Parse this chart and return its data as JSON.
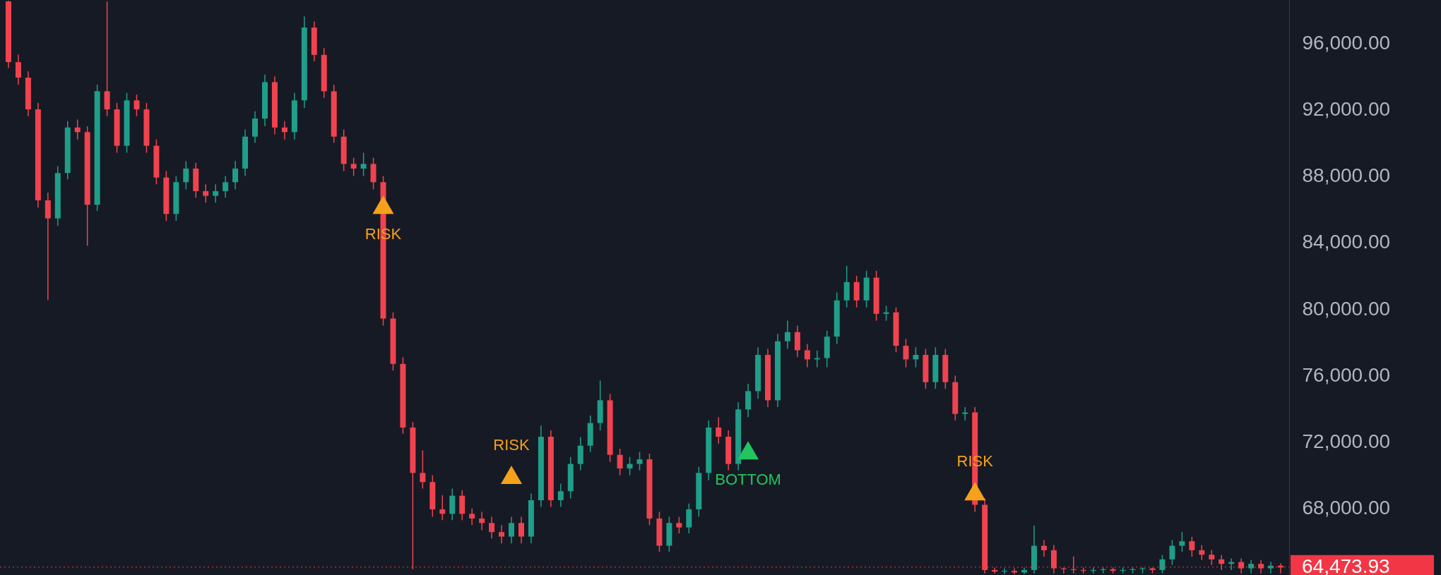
{
  "chart_data": {
    "type": "candlestick",
    "categories": [
      null,
      null,
      null,
      null,
      null,
      null,
      null,
      null,
      null,
      null,
      null,
      null,
      null,
      null,
      null,
      null,
      null,
      null,
      null,
      null,
      null,
      null,
      null,
      null,
      null,
      null,
      null,
      null,
      null,
      null,
      null,
      null,
      null,
      null,
      null,
      null,
      null,
      null,
      null,
      null,
      null,
      null,
      null,
      null,
      null,
      null,
      null,
      null,
      null,
      null,
      null,
      null,
      null,
      null,
      null,
      null,
      null,
      null,
      null,
      null,
      null,
      null,
      null,
      null,
      null,
      null,
      null,
      null,
      null,
      null,
      null,
      null,
      null,
      null,
      null,
      null,
      null,
      null,
      null,
      null,
      null,
      null,
      null,
      null,
      null,
      null,
      null,
      null,
      null,
      null,
      null,
      null,
      null,
      null,
      null,
      null,
      null,
      null,
      null,
      null,
      null,
      null,
      null,
      null,
      null,
      null,
      null,
      null,
      null,
      null,
      null,
      null,
      null,
      null,
      null,
      null,
      null,
      null,
      null,
      null,
      null,
      null,
      null,
      null,
      null,
      null,
      null,
      null,
      null,
      null
    ],
    "ohlc": [
      [
        98500,
        98550,
        94500,
        94850
      ],
      [
        94850,
        95300,
        93500,
        93920
      ],
      [
        93920,
        94300,
        91600,
        92010
      ],
      [
        92010,
        92400,
        86100,
        86540
      ],
      [
        86540,
        87000,
        80530,
        85450
      ],
      [
        85450,
        88600,
        85000,
        88180
      ],
      [
        88180,
        91300,
        87800,
        90920
      ],
      [
        90920,
        91400,
        90200,
        90640
      ],
      [
        90640,
        91000,
        83810,
        86270
      ],
      [
        86270,
        93500,
        85900,
        93100
      ],
      [
        93100,
        98500,
        91600,
        92010
      ],
      [
        92010,
        92400,
        89400,
        89820
      ],
      [
        89820,
        93000,
        89400,
        92550
      ],
      [
        92550,
        92900,
        91600,
        92010
      ],
      [
        92010,
        92400,
        89400,
        89820
      ],
      [
        89820,
        90200,
        87500,
        87910
      ],
      [
        87910,
        88300,
        85300,
        85720
      ],
      [
        85720,
        88000,
        85300,
        87630
      ],
      [
        87630,
        88900,
        87200,
        88450
      ],
      [
        88450,
        88800,
        86700,
        87090
      ],
      [
        87090,
        87500,
        86400,
        86810
      ],
      [
        86810,
        87500,
        86400,
        87090
      ],
      [
        87090,
        88000,
        86700,
        87630
      ],
      [
        87630,
        88900,
        87200,
        88450
      ],
      [
        88450,
        90800,
        88000,
        90370
      ],
      [
        90370,
        91900,
        90000,
        91460
      ],
      [
        91460,
        94100,
        91000,
        93650
      ],
      [
        93650,
        94000,
        90500,
        90920
      ],
      [
        90920,
        91300,
        90200,
        90640
      ],
      [
        90640,
        93000,
        90200,
        92550
      ],
      [
        92550,
        97600,
        92100,
        96930
      ],
      [
        96930,
        97300,
        94900,
        95290
      ],
      [
        95290,
        95700,
        92700,
        93100
      ],
      [
        93100,
        93500,
        90000,
        90370
      ],
      [
        90370,
        90800,
        88300,
        88730
      ],
      [
        88730,
        89100,
        88000,
        88450
      ],
      [
        88450,
        89400,
        88000,
        88730
      ],
      [
        88730,
        89100,
        87200,
        87630
      ],
      [
        87630,
        88000,
        79000,
        79430
      ],
      [
        79430,
        79800,
        76300,
        76700
      ],
      [
        76700,
        77100,
        72500,
        72870
      ],
      [
        72870,
        73200,
        64340,
        70140
      ],
      [
        70140,
        71500,
        69200,
        69590
      ],
      [
        69590,
        70000,
        67500,
        67950
      ],
      [
        67950,
        68800,
        67300,
        67680
      ],
      [
        67680,
        69200,
        67300,
        68770
      ],
      [
        68770,
        69100,
        67300,
        67680
      ],
      [
        67680,
        68000,
        67000,
        67400
      ],
      [
        67400,
        67800,
        66700,
        67130
      ],
      [
        67130,
        67500,
        66200,
        66580
      ],
      [
        66580,
        67000,
        65900,
        66310
      ],
      [
        66310,
        67500,
        65900,
        67130
      ],
      [
        67130,
        67500,
        65900,
        66310
      ],
      [
        66310,
        68900,
        65900,
        68500
      ],
      [
        68500,
        73000,
        68100,
        72320
      ],
      [
        72320,
        72700,
        68100,
        68500
      ],
      [
        68500,
        69500,
        68100,
        69040
      ],
      [
        69040,
        71100,
        68600,
        70680
      ],
      [
        70680,
        72300,
        70300,
        71780
      ],
      [
        71780,
        73600,
        71400,
        73140
      ],
      [
        73140,
        75700,
        72700,
        74510
      ],
      [
        74510,
        74900,
        70800,
        71230
      ],
      [
        71230,
        71600,
        70000,
        70410
      ],
      [
        70410,
        71100,
        70000,
        70680
      ],
      [
        70680,
        71400,
        70300,
        70960
      ],
      [
        70960,
        71300,
        67000,
        67400
      ],
      [
        67400,
        67800,
        65400,
        65760
      ],
      [
        65760,
        67500,
        65400,
        67130
      ],
      [
        67130,
        67500,
        66500,
        66860
      ],
      [
        66860,
        68300,
        66500,
        67950
      ],
      [
        67950,
        70500,
        67500,
        70140
      ],
      [
        70140,
        73300,
        69700,
        72870
      ],
      [
        72870,
        73500,
        71900,
        72320
      ],
      [
        72320,
        72700,
        70300,
        70680
      ],
      [
        70680,
        74400,
        70300,
        73960
      ],
      [
        73960,
        75500,
        73500,
        75060
      ],
      [
        75060,
        77700,
        74600,
        77240
      ],
      [
        77240,
        77600,
        74100,
        74510
      ],
      [
        74510,
        78500,
        74100,
        78060
      ],
      [
        78060,
        79300,
        77600,
        78610
      ],
      [
        78610,
        79000,
        77100,
        77520
      ],
      [
        77520,
        77900,
        76500,
        76970
      ],
      [
        76970,
        77500,
        76500,
        77050
      ],
      [
        77050,
        78700,
        76500,
        78340
      ],
      [
        78340,
        81000,
        77900,
        80520
      ],
      [
        80520,
        82600,
        80100,
        81620
      ],
      [
        81620,
        82000,
        80100,
        80520
      ],
      [
        80520,
        82300,
        80100,
        81890
      ],
      [
        81890,
        82300,
        79300,
        79710
      ],
      [
        79710,
        80200,
        79300,
        79800
      ],
      [
        79800,
        80100,
        77400,
        77790
      ],
      [
        77790,
        78200,
        76500,
        76970
      ],
      [
        76970,
        77700,
        76500,
        77240
      ],
      [
        77240,
        77600,
        75200,
        75600
      ],
      [
        75600,
        77700,
        75200,
        77240
      ],
      [
        77240,
        77600,
        75200,
        75600
      ],
      [
        75600,
        76000,
        73300,
        73690
      ],
      [
        73690,
        74100,
        73300,
        73780
      ],
      [
        73780,
        74100,
        67800,
        68220
      ],
      [
        68220,
        68600,
        64100,
        64300
      ],
      [
        64300,
        64450,
        64100,
        64200
      ],
      [
        64200,
        64400,
        64050,
        64250
      ],
      [
        64250,
        64400,
        64050,
        64150
      ],
      [
        64150,
        64450,
        64050,
        64300
      ],
      [
        64300,
        66970,
        64100,
        65760
      ],
      [
        65760,
        66100,
        65100,
        65490
      ],
      [
        65490,
        65800,
        64100,
        64400
      ],
      [
        64400,
        64450,
        64100,
        64350
      ],
      [
        64350,
        65110,
        64100,
        64300
      ],
      [
        64300,
        64450,
        64100,
        64250
      ],
      [
        64250,
        64450,
        64100,
        64300
      ],
      [
        64300,
        64450,
        64100,
        64350
      ],
      [
        64350,
        64450,
        64100,
        64250
      ],
      [
        64250,
        64450,
        64100,
        64300
      ],
      [
        64300,
        64450,
        64100,
        64350
      ],
      [
        64350,
        64450,
        64100,
        64400
      ],
      [
        64400,
        64450,
        64100,
        64300
      ],
      [
        64300,
        65200,
        64100,
        64940
      ],
      [
        64940,
        66100,
        64600,
        65760
      ],
      [
        65760,
        66580,
        65400,
        66030
      ],
      [
        66030,
        66300,
        65100,
        65490
      ],
      [
        65490,
        65800,
        64900,
        65220
      ],
      [
        65220,
        65500,
        64600,
        64940
      ],
      [
        64940,
        65200,
        64300,
        64670
      ],
      [
        64670,
        65000,
        64300,
        64780
      ],
      [
        64780,
        65000,
        64100,
        64400
      ],
      [
        64400,
        64900,
        64100,
        64670
      ],
      [
        64670,
        64900,
        64100,
        64400
      ],
      [
        64400,
        64800,
        64100,
        64560
      ],
      [
        64560,
        64700,
        64100,
        64450
      ]
    ],
    "series": [
      {
        "name": "RISK",
        "type": "scatter",
        "marker": "triangle",
        "color": "#f5a11c",
        "values": [
          null,
          null,
          null,
          null,
          null,
          null,
          null,
          null,
          null,
          null,
          null,
          null,
          null,
          null,
          null,
          null,
          null,
          null,
          null,
          null,
          null,
          null,
          null,
          null,
          null,
          null,
          null,
          null,
          null,
          null,
          null,
          null,
          null,
          null,
          null,
          null,
          null,
          null,
          86270,
          null,
          null,
          null,
          null,
          null,
          null,
          null,
          null,
          null,
          null,
          null,
          null,
          70030,
          null,
          null,
          null,
          null,
          null,
          null,
          null,
          null,
          null,
          null,
          null,
          null,
          null,
          null,
          null,
          null,
          null,
          null,
          null,
          null,
          null,
          null,
          null,
          null,
          null,
          null,
          null,
          null,
          null,
          null,
          null,
          null,
          null,
          null,
          null,
          null,
          null,
          null,
          null,
          null,
          null,
          null,
          null,
          null,
          null,
          null,
          69040,
          null,
          null,
          null,
          null,
          null,
          null,
          null,
          null,
          null,
          null,
          null,
          null,
          null,
          null,
          null,
          null,
          null,
          null,
          null,
          null,
          null,
          null,
          null,
          null,
          null,
          null,
          null,
          null,
          null,
          null,
          null
        ]
      },
      {
        "name": "BOTTOM",
        "type": "scatter",
        "marker": "triangle",
        "color": "#22c55e",
        "values": [
          null,
          null,
          null,
          null,
          null,
          null,
          null,
          null,
          null,
          null,
          null,
          null,
          null,
          null,
          null,
          null,
          null,
          null,
          null,
          null,
          null,
          null,
          null,
          null,
          null,
          null,
          null,
          null,
          null,
          null,
          null,
          null,
          null,
          null,
          null,
          null,
          null,
          null,
          null,
          null,
          null,
          null,
          null,
          null,
          null,
          null,
          null,
          null,
          null,
          null,
          null,
          null,
          null,
          null,
          null,
          null,
          null,
          null,
          null,
          null,
          null,
          null,
          null,
          null,
          null,
          null,
          null,
          null,
          null,
          null,
          null,
          null,
          null,
          null,
          null,
          71500,
          null,
          null,
          null,
          null,
          null,
          null,
          null,
          null,
          null,
          null,
          null,
          null,
          null,
          null,
          null,
          null,
          null,
          null,
          null,
          null,
          null,
          null,
          null,
          null,
          null,
          null,
          null,
          null,
          null,
          null,
          null,
          null,
          null,
          null,
          null,
          null,
          null,
          null,
          null,
          null,
          null,
          null,
          null,
          null,
          null,
          null,
          null,
          null,
          null,
          null,
          null,
          null,
          null,
          null
        ]
      }
    ],
    "ylim": [
      64000,
      98590
    ],
    "yticks": [
      {
        "value": 68000,
        "label": "68,000.00"
      },
      {
        "value": 72000,
        "label": "72,000.00"
      },
      {
        "value": 76000,
        "label": "76,000.00"
      },
      {
        "value": 80000,
        "label": "80,000.00"
      },
      {
        "value": 84000,
        "label": "84,000.00"
      },
      {
        "value": 88000,
        "label": "88,000.00"
      },
      {
        "value": 92000,
        "label": "92,000.00"
      },
      {
        "value": 96000,
        "label": "96,000.00"
      }
    ],
    "ref_lines": [
      {
        "axis": "y",
        "value": 64473.93,
        "label": "64,473.93",
        "color": "#f23645",
        "line_style": "dotted"
      }
    ],
    "grid": false
  }
}
